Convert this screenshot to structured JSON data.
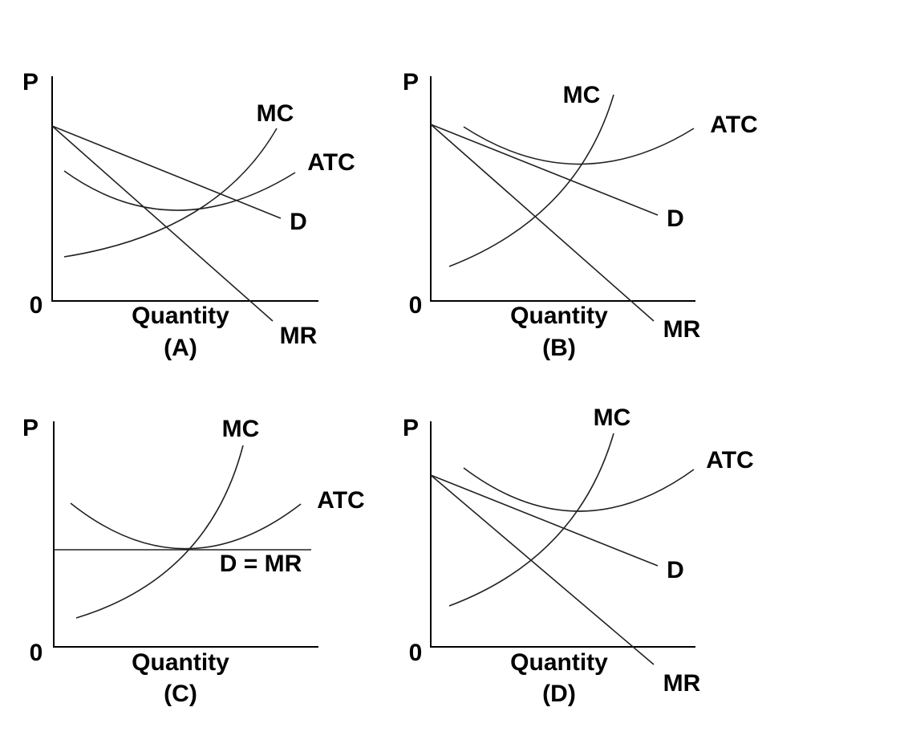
{
  "panels": [
    {
      "y_label": "P",
      "origin": "0",
      "x_label": "Quantity",
      "caption": "(A)",
      "curve_labels": [
        "MC",
        "ATC",
        "D",
        "MR"
      ]
    },
    {
      "y_label": "P",
      "origin": "0",
      "x_label": "Quantity",
      "caption": "(B)",
      "curve_labels": [
        "MC",
        "ATC",
        "D",
        "MR"
      ]
    },
    {
      "y_label": "P",
      "origin": "0",
      "x_label": "Quantity",
      "caption": "(C)",
      "curve_labels": [
        "MC",
        "ATC",
        "D = MR"
      ]
    },
    {
      "y_label": "P",
      "origin": "0",
      "x_label": "Quantity",
      "caption": "(D)",
      "curve_labels": [
        "MC",
        "ATC",
        "D",
        "MR"
      ]
    }
  ]
}
